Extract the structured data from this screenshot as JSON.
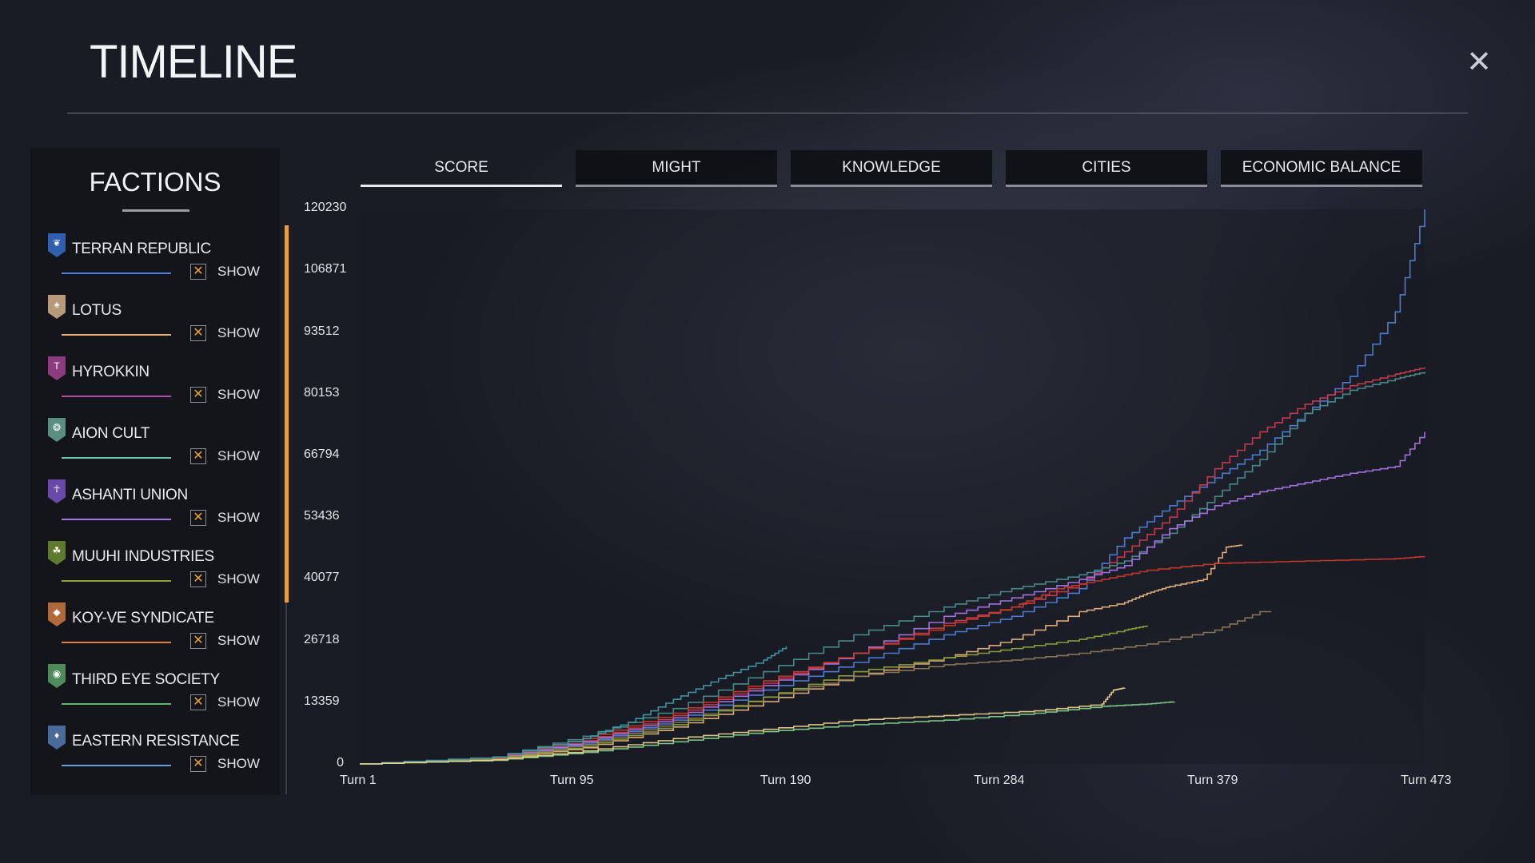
{
  "header": {
    "title": "TIMELINE",
    "close_glyph": "✕"
  },
  "factions_panel": {
    "title": "FACTIONS",
    "items": [
      {
        "name": "TERRAN REPUBLIC",
        "show_label": "SHOW",
        "checked": true,
        "color": "#4f7fd8",
        "icon_color": "#2f5fae",
        "icon": "wings-icon",
        "icon_glyph": "❦"
      },
      {
        "name": "LOTUS",
        "show_label": "SHOW",
        "checked": true,
        "color": "#e7b27d",
        "icon_color": "#b89a7a",
        "icon": "lotus-icon",
        "icon_glyph": "♠"
      },
      {
        "name": "HYROKKIN",
        "show_label": "SHOW",
        "checked": true,
        "color": "#b04fa0",
        "icon_color": "#8a3c7e",
        "icon": "sword-icon",
        "icon_glyph": "T"
      },
      {
        "name": "AION CULT",
        "show_label": "SHOW",
        "checked": true,
        "color": "#6fc6b0",
        "icon_color": "#5a8f7f",
        "icon": "globe-icon",
        "icon_glyph": "❂"
      },
      {
        "name": "ASHANTI UNION",
        "show_label": "SHOW",
        "checked": true,
        "color": "#a875e8",
        "icon_color": "#6a4aa8",
        "icon": "figure-icon",
        "icon_glyph": "☥"
      },
      {
        "name": "MUUHI INDUSTRIES",
        "show_label": "SHOW",
        "checked": true,
        "color": "#8fa33a",
        "icon_color": "#5f7a2e",
        "icon": "gear-icon",
        "icon_glyph": "☘"
      },
      {
        "name": "KOY-VE SYNDICATE",
        "show_label": "SHOW",
        "checked": true,
        "color": "#e08040",
        "icon_color": "#b06a3a",
        "icon": "diamond-icon",
        "icon_glyph": "◆"
      },
      {
        "name": "THIRD EYE SOCIETY",
        "show_label": "SHOW",
        "checked": true,
        "color": "#5fb86a",
        "icon_color": "#4f8a5a",
        "icon": "eye-icon",
        "icon_glyph": "◉"
      },
      {
        "name": "EASTERN RESISTANCE",
        "show_label": "SHOW",
        "checked": true,
        "color": "#6a9ce0",
        "icon_color": "#4a6a9a",
        "icon": "torch-icon",
        "icon_glyph": "♦"
      }
    ]
  },
  "tabs": [
    {
      "label": "SCORE",
      "active": true
    },
    {
      "label": "MIGHT",
      "active": false
    },
    {
      "label": "KNOWLEDGE",
      "active": false
    },
    {
      "label": "CITIES",
      "active": false
    },
    {
      "label": "ECONOMIC BALANCE",
      "active": false
    }
  ],
  "colors": {
    "accent": "#e8a13a"
  },
  "chart_data": {
    "type": "line",
    "title": "",
    "xlabel": "",
    "ylabel": "",
    "y_ticks": [
      "0",
      "13359",
      "26718",
      "40077",
      "53436",
      "66794",
      "80153",
      "93512",
      "106871",
      "120230"
    ],
    "x_ticks": [
      "Turn 1",
      "Turn 95",
      "Turn 190",
      "Turn 284",
      "Turn 379",
      "Turn 473"
    ],
    "xlim": [
      1,
      473
    ],
    "ylim": [
      0,
      120230
    ],
    "grid": false,
    "series": [
      {
        "color": "#4f7fd8",
        "x": [
          1,
          60,
          100,
          140,
          180,
          220,
          260,
          290,
          320,
          340,
          360,
          380,
          400,
          420,
          440,
          460,
          473
        ],
        "y": [
          0,
          1200,
          4500,
          9500,
          16000,
          22000,
          28000,
          32000,
          38000,
          49000,
          56000,
          62000,
          68000,
          76000,
          84000,
          98000,
          120230
        ]
      },
      {
        "color": "#cc3a4e",
        "x": [
          1,
          60,
          100,
          140,
          180,
          220,
          260,
          290,
          320,
          340,
          360,
          380,
          400,
          420,
          440,
          460,
          473
        ],
        "y": [
          0,
          1300,
          5000,
          10500,
          17500,
          24000,
          30500,
          34000,
          39000,
          46000,
          53500,
          64000,
          72000,
          78000,
          82000,
          84500,
          86000
        ]
      },
      {
        "color": "#4a8f8c",
        "x": [
          1,
          60,
          100,
          140,
          180,
          220,
          260,
          290,
          320,
          340,
          360,
          380,
          400,
          420,
          440,
          460,
          473
        ],
        "y": [
          0,
          1500,
          6000,
          12000,
          20000,
          28000,
          34000,
          38000,
          41000,
          44000,
          50000,
          58000,
          66000,
          76000,
          81000,
          83500,
          85000
        ]
      },
      {
        "color": "#a875e8",
        "x": [
          1,
          60,
          100,
          140,
          180,
          220,
          260,
          290,
          320,
          340,
          360,
          380,
          400,
          420,
          440,
          460,
          473
        ],
        "y": [
          0,
          1200,
          4800,
          10000,
          17000,
          24000,
          32000,
          36000,
          40000,
          43000,
          51000,
          56000,
          59000,
          61000,
          63000,
          64500,
          72000
        ]
      },
      {
        "color": "#e7b27d",
        "x": [
          1,
          60,
          100,
          140,
          180,
          220,
          260,
          290,
          320,
          340,
          350,
          360,
          375,
          385,
          392
        ],
        "y": [
          0,
          1000,
          3500,
          8000,
          13500,
          19000,
          23000,
          27000,
          33000,
          35000,
          37000,
          38500,
          40000,
          47000,
          47500
        ]
      },
      {
        "color": "#c93a2a",
        "x": [
          1,
          60,
          100,
          140,
          180,
          220,
          260,
          290,
          310,
          330,
          350,
          380,
          420,
          460,
          473
        ],
        "y": [
          0,
          1400,
          5500,
          11000,
          18000,
          24000,
          30000,
          34000,
          38000,
          40000,
          42000,
          43500,
          44000,
          44500,
          45000
        ]
      },
      {
        "color": "#8a7a5a",
        "x": [
          1,
          60,
          100,
          140,
          180,
          220,
          260,
          290,
          320,
          350,
          380,
          400,
          405
        ],
        "y": [
          0,
          1100,
          4200,
          9000,
          14500,
          19000,
          21500,
          22500,
          24000,
          26000,
          29000,
          33000,
          33000
        ]
      },
      {
        "color": "#8fa33a",
        "x": [
          1,
          60,
          100,
          140,
          180,
          220,
          260,
          290,
          320,
          340,
          350
        ],
        "y": [
          0,
          1000,
          3800,
          8500,
          14500,
          20000,
          23000,
          25000,
          27000,
          29000,
          30000
        ]
      },
      {
        "color": "#3f9aa8",
        "x": [
          1,
          60,
          100,
          120,
          140,
          160,
          180,
          190
        ],
        "y": [
          0,
          1500,
          5500,
          9000,
          14000,
          18500,
          22500,
          25500
        ]
      },
      {
        "color": "#7fd08a",
        "x": [
          1,
          60,
          100,
          140,
          180,
          220,
          260,
          300,
          330,
          350,
          362
        ],
        "y": [
          0,
          800,
          2500,
          4800,
          7000,
          8500,
          9500,
          11000,
          12500,
          13000,
          13500
        ]
      },
      {
        "color": "#e6cf8a",
        "x": [
          1,
          60,
          100,
          140,
          180,
          220,
          260,
          300,
          330,
          335,
          340
        ],
        "y": [
          0,
          900,
          2800,
          5500,
          7500,
          9500,
          10500,
          11500,
          13000,
          16000,
          16500
        ]
      }
    ]
  }
}
